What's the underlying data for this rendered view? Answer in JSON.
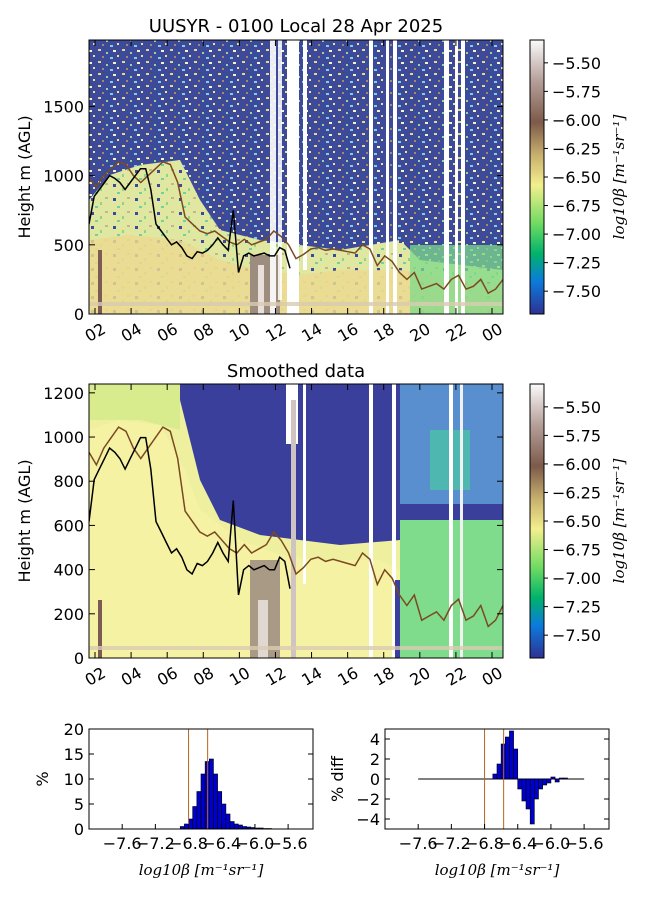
{
  "chart_data": [
    {
      "type": "heatmap",
      "title": "UUSYR - 0100 Local 28 Apr 2025",
      "ylabel": "Height m (AGL)",
      "ylim": [
        0,
        1980
      ],
      "yticks": [
        0,
        500,
        1000,
        1500
      ],
      "xticks": [
        "02",
        "04",
        "06",
        "08",
        "10",
        "12",
        "14",
        "16",
        "18",
        "20",
        "22",
        "00"
      ],
      "colorbar": {
        "label": "log10β [m⁻¹sr⁻¹]",
        "range": [
          -7.7,
          -5.3
        ],
        "ticks": [
          "-5.50",
          "-5.75",
          "-6.00",
          "-6.25",
          "-6.50",
          "-6.75",
          "-7.00",
          "-7.25",
          "-7.50"
        ]
      },
      "series": [
        {
          "values": [
            980,
            920,
            1000,
            1050,
            1100,
            1080,
            1000,
            950,
            1000,
            1050,
            1100,
            1080,
            950,
            700,
            650,
            600,
            580,
            600,
            560,
            520,
            500,
            540,
            500,
            520,
            540,
            600,
            560,
            500,
            400,
            430,
            470,
            480,
            460,
            470,
            460,
            450,
            440,
            500,
            470,
            350,
            420,
            380,
            300,
            250,
            300,
            180,
            200,
            220,
            180,
            250,
            280,
            180,
            200,
            250,
            150,
            180,
            250
          ]
        },
        {
          "values": [
            650,
            850,
            900,
            950,
            1000,
            980,
            950,
            900,
            950,
            1000,
            1050,
            1050,
            900,
            650,
            600,
            550,
            500,
            520,
            480,
            420,
            400,
            450,
            440,
            460,
            500,
            550,
            500,
            460,
            750,
            300,
            420,
            440,
            420,
            430,
            440,
            420,
            420,
            480,
            460,
            330
          ]
        }
      ]
    },
    {
      "type": "heatmap",
      "title": "Smoothed data",
      "ylabel": "Height m (AGL)",
      "ylim": [
        0,
        1240
      ],
      "yticks": [
        0,
        200,
        400,
        600,
        800,
        1000,
        1200
      ],
      "xticks": [
        "02",
        "04",
        "06",
        "08",
        "10",
        "12",
        "14",
        "16",
        "18",
        "20",
        "22",
        "00"
      ],
      "colorbar": {
        "label": "log10β [m⁻¹sr⁻¹]",
        "range": [
          -7.7,
          -5.3
        ],
        "ticks": [
          "-5.50",
          "-5.75",
          "-6.00",
          "-6.25",
          "-6.50",
          "-6.75",
          "-7.00",
          "-7.25",
          "-7.50"
        ]
      }
    },
    {
      "type": "bar",
      "ylabel": "%",
      "xlabel": "log10β [m⁻¹sr⁻¹]",
      "xticks": [
        "-7.6",
        "-7.2",
        "-6.8",
        "-6.4",
        "-6.0",
        "-5.6"
      ],
      "yticks": [
        "0",
        "5",
        "10",
        "15",
        "20"
      ],
      "ylim": [
        0,
        20
      ],
      "xlim": [
        -8.0,
        -5.3
      ],
      "bin_start": -6.9,
      "bin_width": 0.05,
      "values": [
        0.5,
        1.0,
        2.0,
        4.5,
        7.5,
        11.0,
        13.5,
        14.0,
        11.0,
        7.5,
        5.0,
        3.0,
        1.5,
        1.0,
        0.8,
        0.5,
        0.4,
        0.3,
        0.2,
        0.2,
        0.1,
        0.1
      ],
      "markers": [
        -6.8,
        -6.57
      ]
    },
    {
      "type": "bar",
      "ylabel": "% diff",
      "xlabel": "log10β [m⁻¹sr⁻¹]",
      "xticks": [
        "-7.6",
        "-7.2",
        "-6.8",
        "-6.4",
        "-6.0",
        "-5.6"
      ],
      "yticks": [
        "4",
        "2",
        "0",
        "-2",
        "-4"
      ],
      "ylim": [
        -5,
        5
      ],
      "xlim": [
        -8.0,
        -5.3
      ],
      "bin_start": -6.7,
      "bin_width": 0.05,
      "values": [
        0.5,
        1.5,
        3.5,
        4.2,
        4.8,
        3.0,
        -1.0,
        -2.2,
        -3.0,
        -4.5,
        -2.0,
        -1.0,
        -0.6,
        -0.4,
        0.2,
        -0.3,
        0.1,
        0.1
      ],
      "markers": [
        -6.8,
        -6.57
      ]
    }
  ]
}
